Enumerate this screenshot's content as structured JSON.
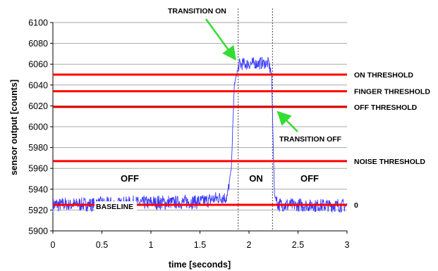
{
  "chart_data": {
    "type": "line",
    "title": "",
    "xlabel": "time [seconds]",
    "ylabel": "sensor output [counts]",
    "xlim": [
      0,
      3
    ],
    "ylim": [
      5900,
      6100
    ],
    "x_ticks": [
      "0",
      "0.5",
      "1",
      "1.5",
      "2",
      "2.5",
      "3"
    ],
    "y_ticks": [
      "5900",
      "5920",
      "5940",
      "5960",
      "5980",
      "6000",
      "6020",
      "6040",
      "6060",
      "6080",
      "6100"
    ],
    "grid": "horizontal",
    "legend": "none",
    "series": [
      {
        "color": "#3a3aff",
        "style": "noisy",
        "points": [
          {
            "x": 0.0,
            "y": 5925
          },
          {
            "x": 1.5,
            "y": 5928
          },
          {
            "x": 1.78,
            "y": 5933
          },
          {
            "x": 1.82,
            "y": 5960
          },
          {
            "x": 1.85,
            "y": 6040
          },
          {
            "x": 1.9,
            "y": 6060
          },
          {
            "x": 2.2,
            "y": 6061
          },
          {
            "x": 2.23,
            "y": 6050
          },
          {
            "x": 2.26,
            "y": 5935
          },
          {
            "x": 2.3,
            "y": 5925
          },
          {
            "x": 3.0,
            "y": 5924
          }
        ]
      }
    ],
    "thresholds": [
      {
        "label": "ON THRESHOLD",
        "y": 6050,
        "color": "#ff0000"
      },
      {
        "label": "FINGER THRESHOLD",
        "y": 6034,
        "color": "#ff0000"
      },
      {
        "label": "OFF THRESHOLD",
        "y": 6019,
        "color": "#e00000"
      },
      {
        "label": "NOISE THRESHOLD",
        "y": 5967,
        "color": "#ff0000"
      },
      {
        "label": "0",
        "y": 5925,
        "color": "#ff0000"
      }
    ],
    "vlines": [
      1.89,
      2.24
    ],
    "annotations": {
      "transition_on": "TRANSITION ON",
      "transition_off": "TRANSITION OFF",
      "baseline": "BASELINE",
      "off_left": "OFF",
      "on": "ON",
      "off_right": "OFF",
      "arrow_color": "#33dd33"
    }
  }
}
